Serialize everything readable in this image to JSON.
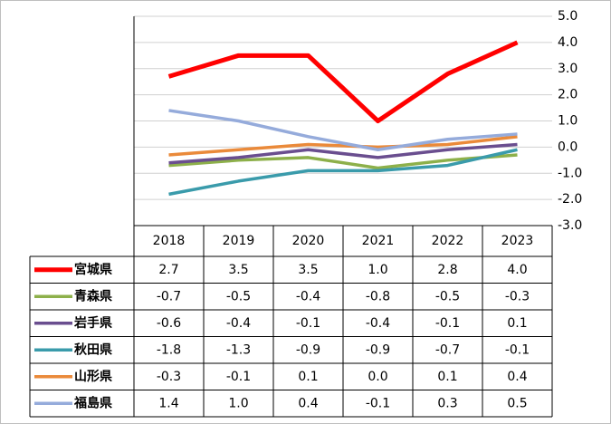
{
  "chart_data": {
    "type": "line",
    "categories": [
      "2018",
      "2019",
      "2020",
      "2021",
      "2022",
      "2023"
    ],
    "series": [
      {
        "name": "宮城県",
        "color": "#ff0000",
        "values": [
          2.7,
          3.5,
          3.5,
          1.0,
          2.8,
          4.0
        ],
        "value_labels": [
          "2.7",
          "3.5",
          "3.5",
          "1.0",
          "2.8",
          "4.0"
        ]
      },
      {
        "name": "青森県",
        "color": "#8db04a",
        "values": [
          -0.7,
          -0.5,
          -0.4,
          -0.8,
          -0.5,
          -0.3
        ],
        "value_labels": [
          "-0.7",
          "-0.5",
          "-0.4",
          "-0.8",
          "-0.5",
          "-0.3"
        ]
      },
      {
        "name": "岩手県",
        "color": "#6a4e8f",
        "values": [
          -0.6,
          -0.4,
          -0.1,
          -0.4,
          -0.1,
          0.1
        ],
        "value_labels": [
          "-0.6",
          "-0.4",
          "-0.1",
          "-0.4",
          "-0.1",
          "0.1"
        ]
      },
      {
        "name": "秋田県",
        "color": "#3a9bab",
        "values": [
          -1.8,
          -1.3,
          -0.9,
          -0.9,
          -0.7,
          -0.1
        ],
        "value_labels": [
          "-1.8",
          "-1.3",
          "-0.9",
          "-0.9",
          "-0.7",
          "-0.1"
        ]
      },
      {
        "name": "山形県",
        "color": "#ea8a3a",
        "values": [
          -0.3,
          -0.1,
          0.1,
          0.0,
          0.1,
          0.4
        ],
        "value_labels": [
          "-0.3",
          "-0.1",
          "0.1",
          "0.0",
          "0.1",
          "0.4"
        ]
      },
      {
        "name": "福島県",
        "color": "#95abdb",
        "values": [
          1.4,
          1.0,
          0.4,
          -0.1,
          0.3,
          0.5
        ],
        "value_labels": [
          "1.4",
          "1.0",
          "0.4",
          "-0.1",
          "0.3",
          "0.5"
        ]
      }
    ],
    "ylim": [
      -3,
      5
    ],
    "yticks": [
      {
        "value": 5,
        "label": "5.0"
      },
      {
        "value": 4,
        "label": "4.0"
      },
      {
        "value": 3,
        "label": "3.0"
      },
      {
        "value": 2,
        "label": "2.0"
      },
      {
        "value": 1,
        "label": "1.0"
      },
      {
        "value": 0,
        "label": "0.0"
      },
      {
        "value": -1,
        "label": "-1.0"
      },
      {
        "value": -2,
        "label": "-2.0"
      },
      {
        "value": -3,
        "label": "-3.0"
      }
    ],
    "grid": true
  }
}
